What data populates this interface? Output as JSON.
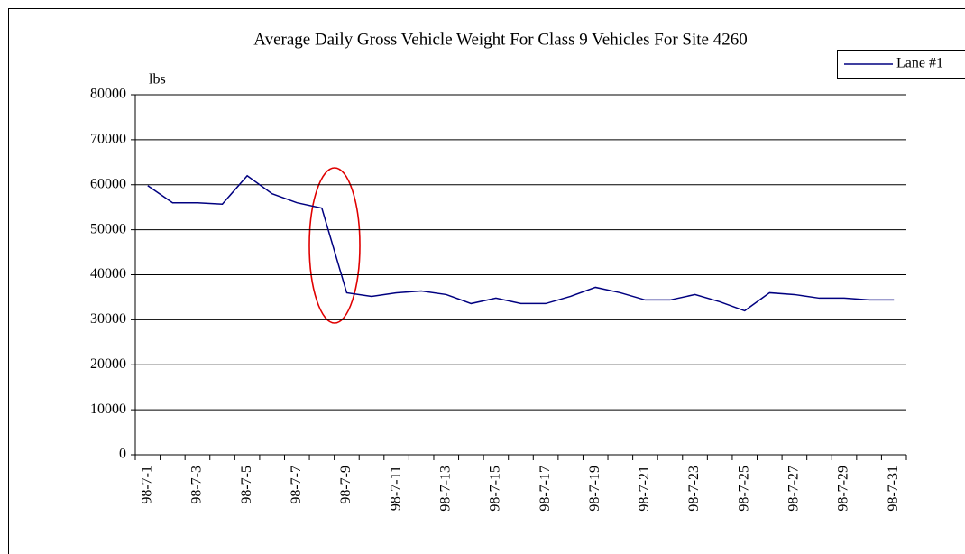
{
  "chart_data": {
    "type": "line",
    "title": "Average Daily Gross Vehicle Weight For Class 9 Vehicles For Site 4260",
    "y_label": "lbs",
    "categories": [
      "98-7-1",
      null,
      "98-7-3",
      null,
      "98-7-5",
      null,
      "98-7-7",
      null,
      "98-7-9",
      null,
      "98-7-11",
      null,
      "98-7-13",
      null,
      "98-7-15",
      null,
      "98-7-17",
      null,
      "98-7-19",
      null,
      "98-7-21",
      null,
      "98-7-23",
      null,
      "98-7-25",
      null,
      "98-7-27",
      null,
      "98-7-29",
      null,
      "98-7-31"
    ],
    "series": [
      {
        "name": "Lane #1",
        "color": "#000080",
        "values": [
          59800,
          56000,
          56000,
          55700,
          62000,
          58000,
          56000,
          54800,
          36000,
          35200,
          36000,
          36400,
          35600,
          33600,
          34800,
          33600,
          33600,
          35200,
          37200,
          36000,
          34400,
          34400,
          35600,
          34000,
          32000,
          36000,
          35600,
          34800,
          34800,
          34400,
          34400
        ]
      }
    ],
    "ylim": [
      0,
      80000
    ],
    "yticks": [
      0,
      10000,
      20000,
      30000,
      40000,
      50000,
      60000,
      70000,
      80000
    ],
    "grid": true,
    "legend": "top-right"
  }
}
